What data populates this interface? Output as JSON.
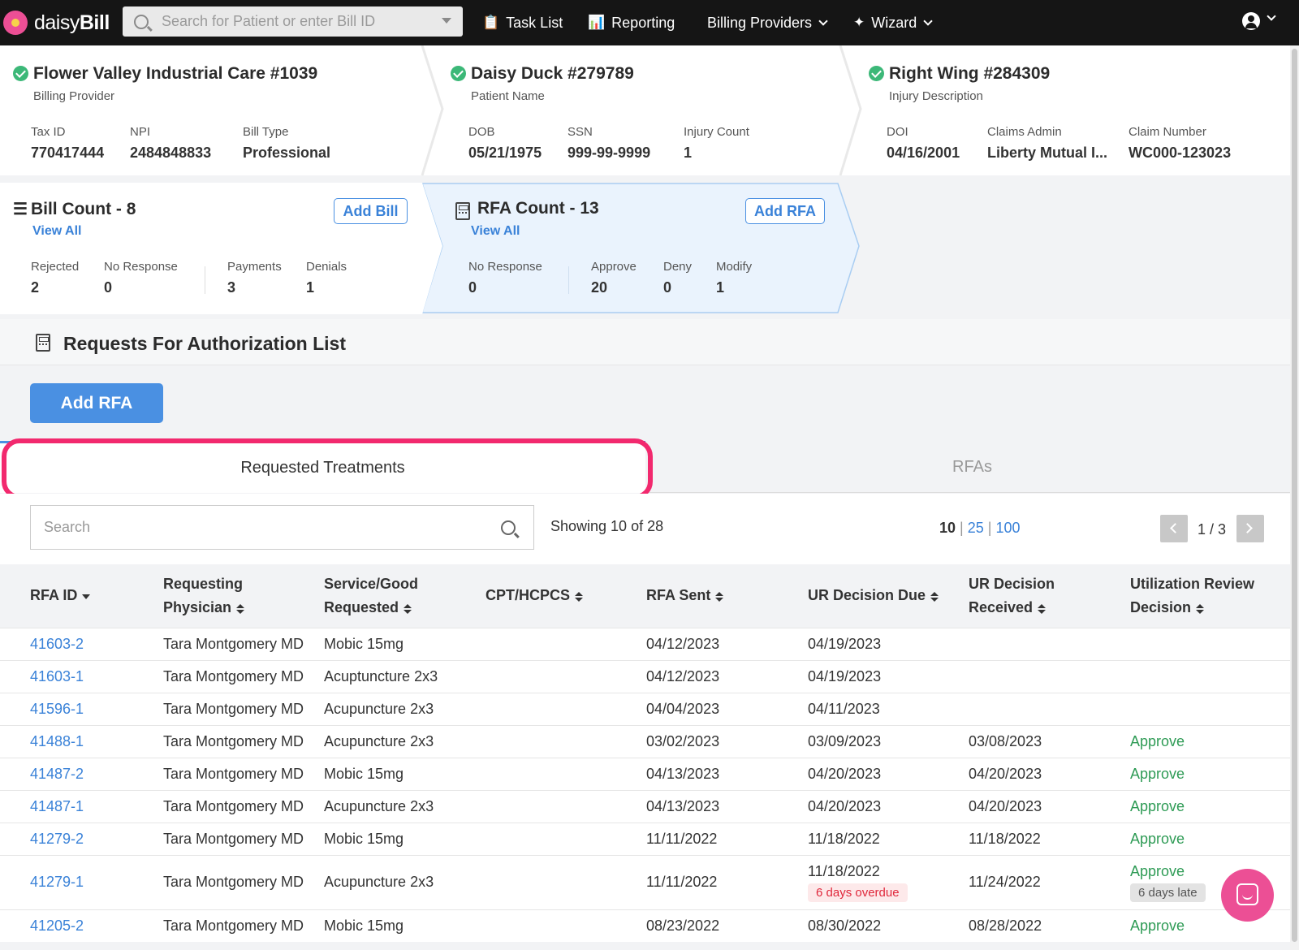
{
  "app": {
    "logo_text_light": "daisy",
    "logo_text_bold": "Bill"
  },
  "search": {
    "placeholder": "Search for Patient or enter Bill ID"
  },
  "nav": {
    "task_list": "Task List",
    "reporting": "Reporting",
    "billing_providers": "Billing Providers",
    "wizard": "Wizard"
  },
  "provider": {
    "title": "Flower Valley Industrial Care #1039",
    "subtitle": "Billing Provider",
    "tax_id_label": "Tax ID",
    "tax_id": "770417444",
    "npi_label": "NPI",
    "npi": "2484848833",
    "bill_type_label": "Bill Type",
    "bill_type": "Professional"
  },
  "patient": {
    "title": "Daisy Duck #279789",
    "subtitle": "Patient Name",
    "dob_label": "DOB",
    "dob": "05/21/1975",
    "ssn_label": "SSN",
    "ssn": "999-99-9999",
    "injury_count_label": "Injury Count",
    "injury_count": "1"
  },
  "injury": {
    "title": "Right Wing #284309",
    "subtitle": "Injury Description",
    "doi_label": "DOI",
    "doi": "04/16/2001",
    "claims_admin_label": "Claims Admin",
    "claims_admin": "Liberty Mutual I...",
    "claim_number_label": "Claim Number",
    "claim_number": "WC000-123023"
  },
  "bills": {
    "title": "Bill Count - 8",
    "view_all": "View All",
    "add_label": "Add Bill",
    "rejected_label": "Rejected",
    "rejected": "2",
    "no_response_label": "No Response",
    "no_response": "0",
    "payments_label": "Payments",
    "payments": "3",
    "denials_label": "Denials",
    "denials": "1"
  },
  "rfa_card": {
    "title": "RFA Count - 13",
    "view_all": "View All",
    "add_label": "Add RFA",
    "no_response_label": "No Response",
    "no_response": "0",
    "approve_label": "Approve",
    "approve": "20",
    "deny_label": "Deny",
    "deny": "0",
    "modify_label": "Modify",
    "modify": "1"
  },
  "section": {
    "title": "Requests For Authorization List",
    "add_button": "Add RFA"
  },
  "tabs": {
    "requested_treatments": "Requested Treatments",
    "rfas": "RFAs"
  },
  "table_controls": {
    "search_placeholder": "Search",
    "showing": "Showing 10 of 28",
    "size_10": "10",
    "size_25": "25",
    "size_100": "100",
    "page": "1 / 3"
  },
  "table": {
    "headers": {
      "rfa_id": "RFA ID",
      "physician_1": "Requesting",
      "physician_2": "Physician",
      "service_1": "Service/Good",
      "service_2": "Requested",
      "cpt": "CPT/HCPCS",
      "sent": "RFA Sent",
      "due": "UR Decision Due",
      "received_1": "UR Decision",
      "received_2": "Received",
      "decision_1": "Utilization Review",
      "decision_2": "Decision"
    },
    "rows": [
      {
        "id": "41603-2",
        "physician": "Tara Montgomery MD",
        "service": "Mobic 15mg",
        "cpt": "",
        "sent": "04/12/2023",
        "due": "04/19/2023",
        "due_badge": "",
        "received": "",
        "decision": "",
        "decision_badge": ""
      },
      {
        "id": "41603-1",
        "physician": "Tara Montgomery MD",
        "service": "Acuptuncture 2x3",
        "cpt": "",
        "sent": "04/12/2023",
        "due": "04/19/2023",
        "due_badge": "",
        "received": "",
        "decision": "",
        "decision_badge": ""
      },
      {
        "id": "41596-1",
        "physician": "Tara Montgomery MD",
        "service": "Acupuncture 2x3",
        "cpt": "",
        "sent": "04/04/2023",
        "due": "04/11/2023",
        "due_badge": "",
        "received": "",
        "decision": "",
        "decision_badge": ""
      },
      {
        "id": "41488-1",
        "physician": "Tara Montgomery MD",
        "service": "Acupuncture 2x3",
        "cpt": "",
        "sent": "03/02/2023",
        "due": "03/09/2023",
        "due_badge": "",
        "received": "03/08/2023",
        "decision": "Approve",
        "decision_badge": ""
      },
      {
        "id": "41487-2",
        "physician": "Tara Montgomery MD",
        "service": "Mobic 15mg",
        "cpt": "",
        "sent": "04/13/2023",
        "due": "04/20/2023",
        "due_badge": "",
        "received": "04/20/2023",
        "decision": "Approve",
        "decision_badge": ""
      },
      {
        "id": "41487-1",
        "physician": "Tara Montgomery MD",
        "service": "Acupuncture 2x3",
        "cpt": "",
        "sent": "04/13/2023",
        "due": "04/20/2023",
        "due_badge": "",
        "received": "04/20/2023",
        "decision": "Approve",
        "decision_badge": ""
      },
      {
        "id": "41279-2",
        "physician": "Tara Montgomery MD",
        "service": "Mobic 15mg",
        "cpt": "",
        "sent": "11/11/2022",
        "due": "11/18/2022",
        "due_badge": "",
        "received": "11/18/2022",
        "decision": "Approve",
        "decision_badge": ""
      },
      {
        "id": "41279-1",
        "physician": "Tara Montgomery MD",
        "service": "Acupuncture 2x3",
        "cpt": "",
        "sent": "11/11/2022",
        "due": "11/18/2022",
        "due_badge": "6 days overdue",
        "received": "11/24/2022",
        "decision": "Approve",
        "decision_badge": "6 days late"
      },
      {
        "id": "41205-2",
        "physician": "Tara Montgomery MD",
        "service": "Mobic 15mg",
        "cpt": "",
        "sent": "08/23/2022",
        "due": "08/30/2022",
        "due_badge": "",
        "received": "08/28/2022",
        "decision": "Approve",
        "decision_badge": ""
      }
    ]
  },
  "colors": {
    "accent": "#4a90e2",
    "link": "#3a82d8",
    "success": "#2e9b55",
    "highlight": "#f2296e",
    "brand": "#ec4f95"
  }
}
